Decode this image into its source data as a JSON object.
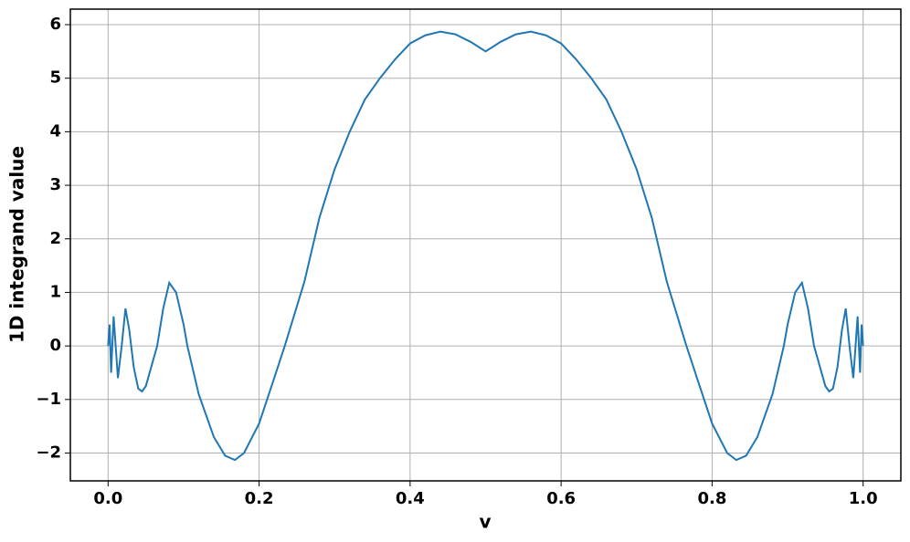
{
  "chart_data": {
    "type": "line",
    "xlabel": "v",
    "ylabel": "1D integrand value",
    "xlim": [
      -0.05,
      1.05
    ],
    "ylim": [
      -2.52,
      6.29
    ],
    "xticks": [
      {
        "value": 0,
        "label": "0.0"
      },
      {
        "value": 0.2,
        "label": "0.2"
      },
      {
        "value": 0.4,
        "label": "0.4"
      },
      {
        "value": 0.6,
        "label": "0.6"
      },
      {
        "value": 0.8,
        "label": "0.8"
      },
      {
        "value": 1,
        "label": "1.0"
      }
    ],
    "yticks": [
      {
        "value": -2,
        "label": "−2"
      },
      {
        "value": -1,
        "label": "−1"
      },
      0,
      1,
      2,
      3,
      4,
      5,
      6
    ],
    "grid": true,
    "series": [
      {
        "color": "#1f77b4",
        "x": [
          0,
          0.002,
          0.004,
          0.0073,
          0.01,
          0.013,
          0.018,
          0.023,
          0.028,
          0.034,
          0.04,
          0.045,
          0.05,
          0.055,
          0.065,
          0.073,
          0.081,
          0.09,
          0.1,
          0.105,
          0.12,
          0.14,
          0.155,
          0.168,
          0.18,
          0.2,
          0.22,
          0.234,
          0.26,
          0.28,
          0.3,
          0.32,
          0.34,
          0.36,
          0.38,
          0.4,
          0.42,
          0.44,
          0.46,
          0.48,
          0.5,
          0.52,
          0.54,
          0.56,
          0.58,
          0.6,
          0.62,
          0.64,
          0.66,
          0.68,
          0.7,
          0.72,
          0.74,
          0.766,
          0.78,
          0.8,
          0.82,
          0.832,
          0.845,
          0.86,
          0.88,
          0.895,
          0.9,
          0.91,
          0.919,
          0.927,
          0.935,
          0.945,
          0.95,
          0.955,
          0.96,
          0.966,
          0.972,
          0.977,
          0.982,
          0.987,
          0.99,
          0.9927,
          0.996,
          0.998,
          1.0
        ],
        "values": [
          0,
          0.4,
          -0.5,
          0.55,
          0,
          -0.6,
          0,
          0.7,
          0.3,
          -0.4,
          -0.8,
          -0.85,
          -0.75,
          -0.5,
          0,
          0.7,
          1.18,
          1.0,
          0.4,
          0,
          -0.9,
          -1.7,
          -2.05,
          -2.13,
          -2.0,
          -1.45,
          -0.6,
          0,
          1.2,
          2.4,
          3.3,
          4.0,
          4.6,
          5.0,
          5.35,
          5.65,
          5.8,
          5.87,
          5.82,
          5.68,
          5.5,
          5.68,
          5.82,
          5.87,
          5.8,
          5.65,
          5.35,
          5.0,
          4.6,
          4.0,
          3.3,
          2.4,
          1.2,
          0,
          -0.6,
          -1.45,
          -2.0,
          -2.13,
          -2.05,
          -1.7,
          -0.9,
          0,
          0.4,
          1.0,
          1.18,
          0.7,
          0,
          -0.5,
          -0.75,
          -0.85,
          -0.8,
          -0.4,
          0.3,
          0.7,
          0,
          -0.6,
          0,
          0.55,
          -0.5,
          0.4,
          0
        ]
      }
    ]
  }
}
